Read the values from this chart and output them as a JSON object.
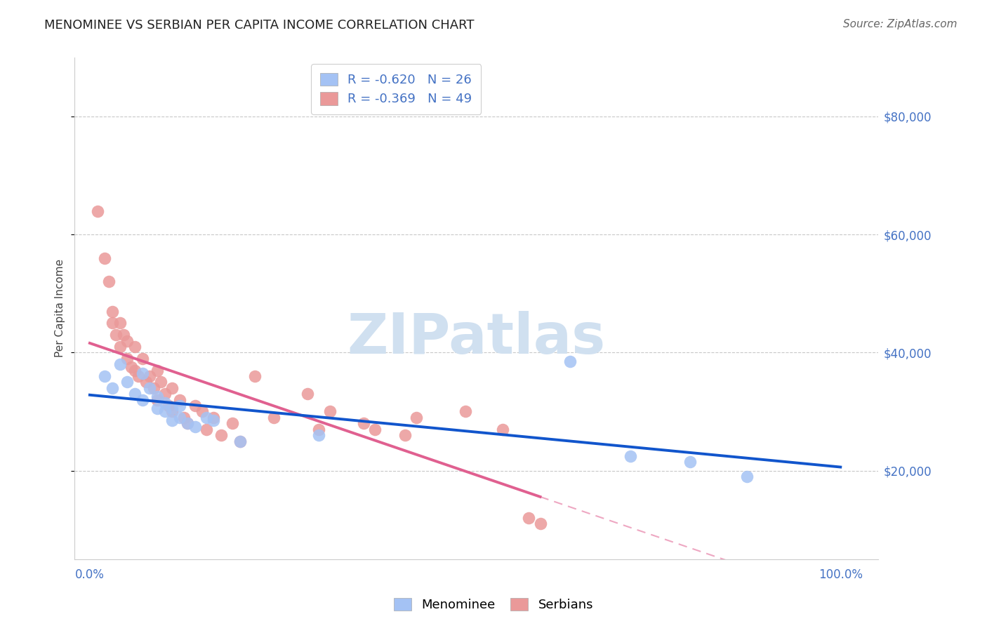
{
  "title": "MENOMINEE VS SERBIAN PER CAPITA INCOME CORRELATION CHART",
  "source": "Source: ZipAtlas.com",
  "ylabel": "Per Capita Income",
  "ytick_labels": [
    "$20,000",
    "$40,000",
    "$60,000",
    "$80,000"
  ],
  "ytick_values": [
    20000,
    40000,
    60000,
    80000
  ],
  "ylim": [
    5000,
    90000
  ],
  "xlim": [
    -0.02,
    1.05
  ],
  "menominee_R": "-0.620",
  "menominee_N": "26",
  "serbian_R": "-0.369",
  "serbian_N": "49",
  "menominee_color": "#a4c2f4",
  "serbian_color": "#ea9999",
  "menominee_line_color": "#1155cc",
  "serbian_line_color": "#e06090",
  "watermark_text": "ZIPatlas",
  "watermark_color": "#d0e0f0",
  "background_color": "#ffffff",
  "grid_color": "#c8c8c8",
  "title_fontsize": 13,
  "source_fontsize": 11,
  "tick_fontsize": 12,
  "ylabel_fontsize": 11,
  "menominee_x": [
    0.02,
    0.03,
    0.04,
    0.05,
    0.06,
    0.07,
    0.07,
    0.08,
    0.09,
    0.09,
    0.1,
    0.1,
    0.11,
    0.11,
    0.12,
    0.12,
    0.13,
    0.14,
    0.155,
    0.165,
    0.2,
    0.305,
    0.64,
    0.72,
    0.8,
    0.875
  ],
  "menominee_y": [
    36000,
    34000,
    38000,
    35000,
    33000,
    36500,
    32000,
    34000,
    30500,
    32500,
    30000,
    31500,
    28500,
    30500,
    29000,
    31000,
    28000,
    27500,
    29000,
    28500,
    25000,
    26000,
    38500,
    22500,
    21500,
    19000
  ],
  "serbian_x": [
    0.01,
    0.02,
    0.025,
    0.03,
    0.03,
    0.035,
    0.04,
    0.04,
    0.045,
    0.05,
    0.05,
    0.055,
    0.06,
    0.06,
    0.065,
    0.07,
    0.075,
    0.08,
    0.085,
    0.09,
    0.09,
    0.095,
    0.1,
    0.105,
    0.11,
    0.11,
    0.12,
    0.125,
    0.13,
    0.14,
    0.15,
    0.155,
    0.165,
    0.175,
    0.19,
    0.2,
    0.22,
    0.245,
    0.29,
    0.305,
    0.32,
    0.365,
    0.38,
    0.42,
    0.435,
    0.5,
    0.55,
    0.585,
    0.6
  ],
  "serbian_y": [
    64000,
    56000,
    52000,
    47000,
    45000,
    43000,
    45000,
    41000,
    43000,
    42000,
    39000,
    37500,
    41000,
    37000,
    36000,
    39000,
    35000,
    36000,
    34000,
    37000,
    32000,
    35000,
    33000,
    31000,
    34000,
    30000,
    32000,
    29000,
    28000,
    31000,
    30000,
    27000,
    29000,
    26000,
    28000,
    25000,
    36000,
    29000,
    33000,
    27000,
    30000,
    28000,
    27000,
    26000,
    29000,
    30000,
    27000,
    12000,
    11000
  ]
}
